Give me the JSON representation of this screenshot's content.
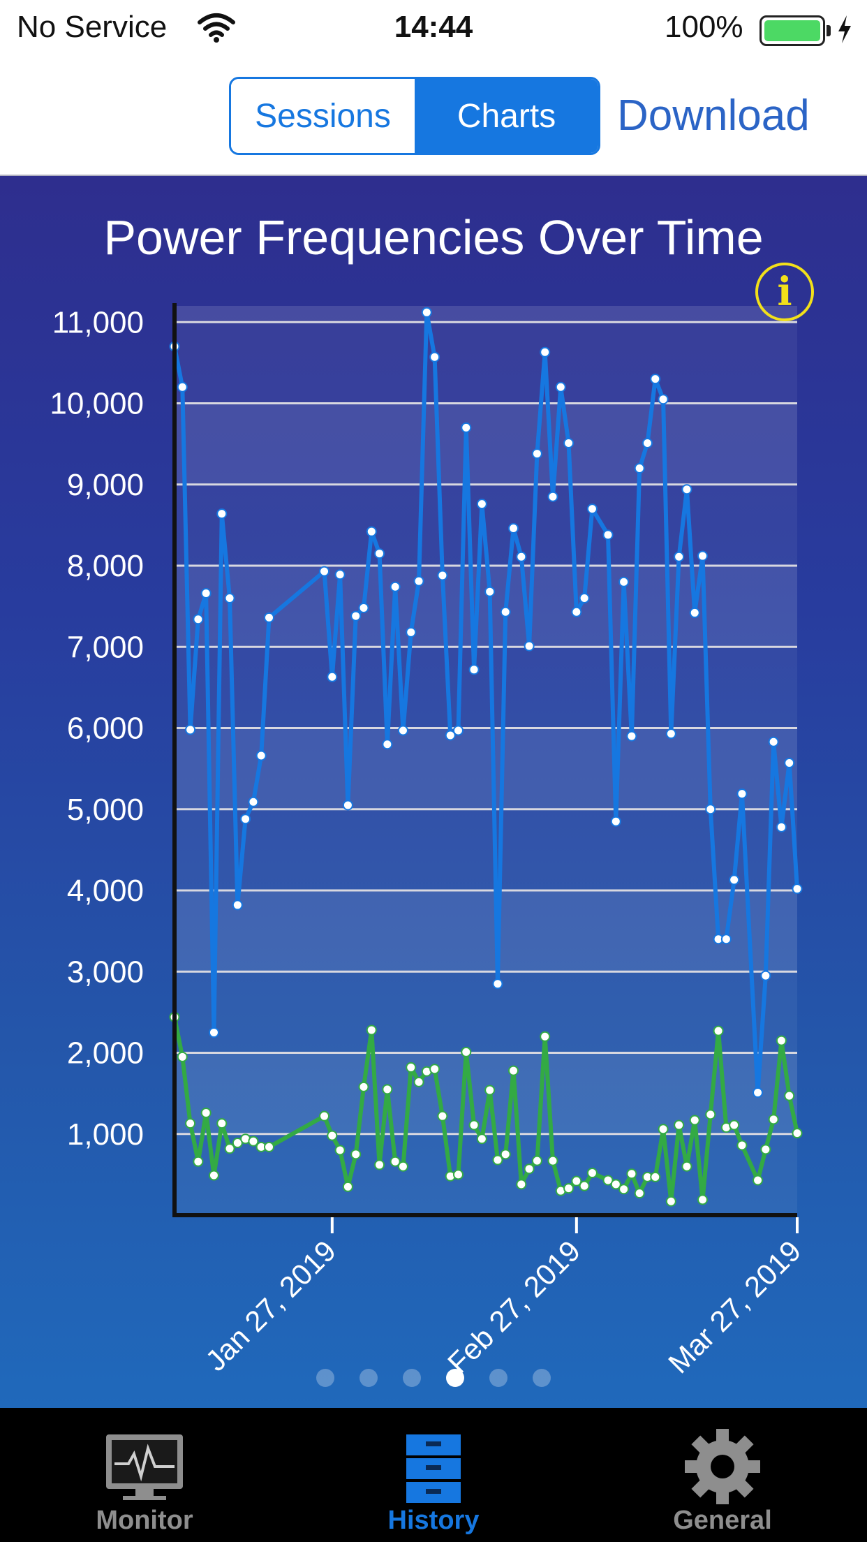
{
  "status_bar": {
    "carrier": "No Service",
    "time": "14:44",
    "battery": "100%",
    "battery_level": 1.0,
    "battery_color": "#4cd964"
  },
  "nav": {
    "segments": [
      "Sessions",
      "Charts"
    ],
    "selected_segment": "Charts",
    "download_label": "Download",
    "accent_color": "#1677e0"
  },
  "chart": {
    "title": "Power Frequencies Over Time",
    "info_label": "i",
    "info_icon": "info-circle-icon"
  },
  "chart_data": {
    "type": "line",
    "title": "Power Frequencies Over Time",
    "xlabel": "",
    "ylabel": "",
    "ylim": [
      0,
      11200
    ],
    "y_ticks": [
      1000,
      2000,
      3000,
      4000,
      5000,
      6000,
      7000,
      8000,
      9000,
      10000,
      11000
    ],
    "y_tick_labels": [
      "1,000",
      "2,000",
      "3,000",
      "4,000",
      "5,000",
      "6,000",
      "7,000",
      "8,000",
      "9,000",
      "10,000",
      "11,000"
    ],
    "xlim": [
      "2019-01-07",
      "2019-03-27"
    ],
    "x_ticks": [
      "2019-01-27",
      "2019-02-27",
      "2019-03-27"
    ],
    "x_tick_labels": [
      "Jan 27, 2019",
      "Feb 27, 2019",
      "Mar 27, 2019"
    ],
    "grid": true,
    "legend": "none",
    "series": [
      {
        "color": "#1677e0",
        "points": [
          [
            "2019-01-07",
            10700
          ],
          [
            "2019-01-08",
            10200
          ],
          [
            "2019-01-09",
            5980
          ],
          [
            "2019-01-10",
            7340
          ],
          [
            "2019-01-11",
            7660
          ],
          [
            "2019-01-12",
            2250
          ],
          [
            "2019-01-13",
            8640
          ],
          [
            "2019-01-14",
            7600
          ],
          [
            "2019-01-15",
            3820
          ],
          [
            "2019-01-16",
            4880
          ],
          [
            "2019-01-17",
            5090
          ],
          [
            "2019-01-18",
            5660
          ],
          [
            "2019-01-19",
            7360
          ],
          [
            "2019-01-26",
            7930
          ],
          [
            "2019-01-27",
            6630
          ],
          [
            "2019-01-28",
            7890
          ],
          [
            "2019-01-29",
            5050
          ],
          [
            "2019-01-30",
            7380
          ],
          [
            "2019-01-31",
            7480
          ],
          [
            "2019-02-01",
            8420
          ],
          [
            "2019-02-02",
            8150
          ],
          [
            "2019-02-03",
            5800
          ],
          [
            "2019-02-04",
            7740
          ],
          [
            "2019-02-05",
            5970
          ],
          [
            "2019-02-06",
            7180
          ],
          [
            "2019-02-07",
            7810
          ],
          [
            "2019-02-08",
            11120
          ],
          [
            "2019-02-09",
            10570
          ],
          [
            "2019-02-10",
            7880
          ],
          [
            "2019-02-11",
            5910
          ],
          [
            "2019-02-12",
            5970
          ],
          [
            "2019-02-13",
            9700
          ],
          [
            "2019-02-14",
            6720
          ],
          [
            "2019-02-15",
            8760
          ],
          [
            "2019-02-16",
            7680
          ],
          [
            "2019-02-17",
            2850
          ],
          [
            "2019-02-18",
            7430
          ],
          [
            "2019-02-19",
            8460
          ],
          [
            "2019-02-20",
            8110
          ],
          [
            "2019-02-21",
            7010
          ],
          [
            "2019-02-22",
            9380
          ],
          [
            "2019-02-23",
            10630
          ],
          [
            "2019-02-24",
            8850
          ],
          [
            "2019-02-25",
            10200
          ],
          [
            "2019-02-26",
            9510
          ],
          [
            "2019-02-27",
            7430
          ],
          [
            "2019-02-28",
            7600
          ],
          [
            "2019-03-01",
            8700
          ],
          [
            "2019-03-03",
            8380
          ],
          [
            "2019-03-04",
            4850
          ],
          [
            "2019-03-05",
            7800
          ],
          [
            "2019-03-06",
            5900
          ],
          [
            "2019-03-07",
            9200
          ],
          [
            "2019-03-08",
            9510
          ],
          [
            "2019-03-09",
            10300
          ],
          [
            "2019-03-10",
            10050
          ],
          [
            "2019-03-11",
            5930
          ],
          [
            "2019-03-12",
            8110
          ],
          [
            "2019-03-13",
            8940
          ],
          [
            "2019-03-14",
            7420
          ],
          [
            "2019-03-15",
            8120
          ],
          [
            "2019-03-16",
            5000
          ],
          [
            "2019-03-17",
            3400
          ],
          [
            "2019-03-18",
            3400
          ],
          [
            "2019-03-19",
            4130
          ],
          [
            "2019-03-20",
            5190
          ],
          [
            "2019-03-22",
            1510
          ],
          [
            "2019-03-23",
            2950
          ],
          [
            "2019-03-24",
            5830
          ],
          [
            "2019-03-25",
            4780
          ],
          [
            "2019-03-26",
            5570
          ],
          [
            "2019-03-27",
            4020
          ]
        ]
      },
      {
        "color": "#33aa44",
        "points": [
          [
            "2019-01-07",
            2440
          ],
          [
            "2019-01-08",
            1950
          ],
          [
            "2019-01-09",
            1130
          ],
          [
            "2019-01-10",
            660
          ],
          [
            "2019-01-11",
            1260
          ],
          [
            "2019-01-12",
            490
          ],
          [
            "2019-01-13",
            1130
          ],
          [
            "2019-01-14",
            820
          ],
          [
            "2019-01-15",
            890
          ],
          [
            "2019-01-16",
            940
          ],
          [
            "2019-01-17",
            910
          ],
          [
            "2019-01-18",
            840
          ],
          [
            "2019-01-19",
            840
          ],
          [
            "2019-01-26",
            1220
          ],
          [
            "2019-01-27",
            980
          ],
          [
            "2019-01-28",
            800
          ],
          [
            "2019-01-29",
            350
          ],
          [
            "2019-01-30",
            750
          ],
          [
            "2019-01-31",
            1580
          ],
          [
            "2019-02-01",
            2280
          ],
          [
            "2019-02-02",
            620
          ],
          [
            "2019-02-03",
            1550
          ],
          [
            "2019-02-04",
            660
          ],
          [
            "2019-02-05",
            600
          ],
          [
            "2019-02-06",
            1820
          ],
          [
            "2019-02-07",
            1640
          ],
          [
            "2019-02-08",
            1770
          ],
          [
            "2019-02-09",
            1800
          ],
          [
            "2019-02-10",
            1220
          ],
          [
            "2019-02-11",
            480
          ],
          [
            "2019-02-12",
            500
          ],
          [
            "2019-02-13",
            2010
          ],
          [
            "2019-02-14",
            1110
          ],
          [
            "2019-02-15",
            940
          ],
          [
            "2019-02-16",
            1540
          ],
          [
            "2019-02-17",
            680
          ],
          [
            "2019-02-18",
            750
          ],
          [
            "2019-02-19",
            1780
          ],
          [
            "2019-02-20",
            380
          ],
          [
            "2019-02-21",
            570
          ],
          [
            "2019-02-22",
            670
          ],
          [
            "2019-02-23",
            2200
          ],
          [
            "2019-02-24",
            670
          ],
          [
            "2019-02-25",
            300
          ],
          [
            "2019-02-26",
            330
          ],
          [
            "2019-02-27",
            420
          ],
          [
            "2019-02-28",
            360
          ],
          [
            "2019-03-01",
            520
          ],
          [
            "2019-03-03",
            430
          ],
          [
            "2019-03-04",
            380
          ],
          [
            "2019-03-05",
            320
          ],
          [
            "2019-03-06",
            510
          ],
          [
            "2019-03-07",
            270
          ],
          [
            "2019-03-08",
            470
          ],
          [
            "2019-03-09",
            470
          ],
          [
            "2019-03-10",
            1060
          ],
          [
            "2019-03-11",
            170
          ],
          [
            "2019-03-12",
            1110
          ],
          [
            "2019-03-13",
            600
          ],
          [
            "2019-03-14",
            1170
          ],
          [
            "2019-03-15",
            190
          ],
          [
            "2019-03-16",
            1240
          ],
          [
            "2019-03-17",
            2270
          ],
          [
            "2019-03-18",
            1080
          ],
          [
            "2019-03-19",
            1110
          ],
          [
            "2019-03-20",
            860
          ],
          [
            "2019-03-22",
            430
          ],
          [
            "2019-03-23",
            810
          ],
          [
            "2019-03-24",
            1180
          ],
          [
            "2019-03-25",
            2150
          ],
          [
            "2019-03-26",
            1470
          ],
          [
            "2019-03-27",
            1010
          ]
        ]
      }
    ]
  },
  "pager": {
    "page_count": 6,
    "current_page": 4
  },
  "tabs": [
    {
      "label": "Monitor",
      "icon": "monitor-icon",
      "selected": false
    },
    {
      "label": "History",
      "icon": "history-icon",
      "selected": true
    },
    {
      "label": "General",
      "icon": "gear-icon",
      "selected": false
    }
  ],
  "tab_colors": {
    "selected": "#1677e0",
    "unselected": "#8e8e8e"
  }
}
